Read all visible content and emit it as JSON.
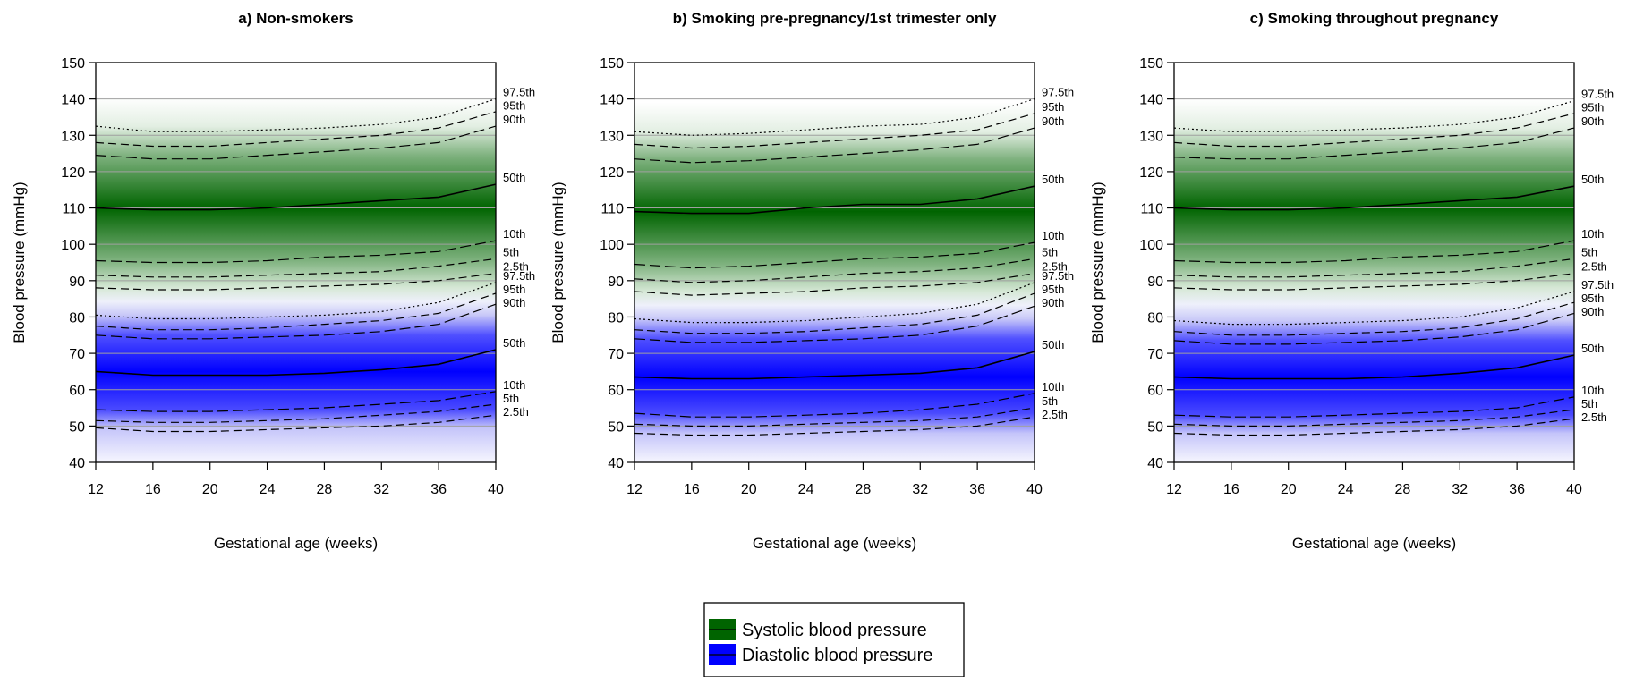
{
  "chart_data": {
    "type": "line",
    "panels": [
      {
        "title": "a) Non-smokers",
        "systolic": {
          "p2_5": [
            88,
            87.5,
            87.5,
            88,
            88.5,
            89,
            90,
            92
          ],
          "p5": [
            91.5,
            91,
            91,
            91.5,
            92,
            92.5,
            94,
            96
          ],
          "p10": [
            95.5,
            95,
            95,
            95.5,
            96.5,
            97,
            98,
            101
          ],
          "p50": [
            110,
            109.5,
            109.5,
            110,
            111,
            112,
            113,
            116.5
          ],
          "p90": [
            124.5,
            123.5,
            123.5,
            124.5,
            125.5,
            126.5,
            128,
            132.5
          ],
          "p95": [
            128,
            127,
            127,
            128,
            129,
            130,
            132,
            136.5
          ],
          "p97_5": [
            132.5,
            131,
            131,
            131.5,
            132,
            133,
            135,
            140
          ]
        },
        "diastolic": {
          "p2_5": [
            49.5,
            48.5,
            48.5,
            49,
            49.5,
            50,
            51,
            53
          ],
          "p5": [
            51.5,
            51,
            51,
            51.5,
            52,
            53,
            54,
            56
          ],
          "p10": [
            54.5,
            54,
            54,
            54.5,
            55,
            56,
            57,
            59.5
          ],
          "p50": [
            65,
            64,
            64,
            64,
            64.5,
            65.5,
            67,
            71
          ],
          "p90": [
            75,
            74,
            74,
            74.5,
            75,
            76,
            78,
            83.5
          ],
          "p95": [
            77.5,
            76.5,
            76.5,
            77,
            78,
            79,
            81,
            86.5
          ],
          "p97_5": [
            80.5,
            79.5,
            79.5,
            80,
            80.5,
            81.5,
            84,
            89.5
          ]
        }
      },
      {
        "title": "b) Smoking pre-pregnancy/1st trimester only",
        "systolic": {
          "p2_5": [
            87,
            86,
            86.5,
            87,
            88,
            88.5,
            89.5,
            92
          ],
          "p5": [
            90.5,
            89.5,
            90,
            91,
            92,
            92.5,
            93.5,
            96
          ],
          "p10": [
            94.5,
            93.5,
            94,
            95,
            96,
            96.5,
            97.5,
            100.5
          ],
          "p50": [
            109,
            108.5,
            108.5,
            110,
            111,
            111,
            112.5,
            116
          ],
          "p90": [
            123.5,
            122.5,
            123,
            124,
            125,
            126,
            127.5,
            132
          ],
          "p95": [
            127.5,
            126.5,
            127,
            128,
            129,
            130,
            131.5,
            136
          ],
          "p97_5": [
            131,
            130,
            130.5,
            131.5,
            132.5,
            133,
            135,
            140
          ]
        },
        "diastolic": {
          "p2_5": [
            48,
            47.5,
            47.5,
            48,
            48.5,
            49,
            50,
            52.5
          ],
          "p5": [
            50.5,
            50,
            50,
            50.5,
            51,
            51.5,
            52.5,
            55
          ],
          "p10": [
            53.5,
            52.5,
            52.5,
            53,
            53.5,
            54.5,
            56,
            59
          ],
          "p50": [
            63.5,
            63,
            63,
            63.5,
            64,
            64.5,
            66,
            70.5
          ],
          "p90": [
            74,
            73,
            73,
            73.5,
            74,
            75,
            77.5,
            83
          ],
          "p95": [
            76.5,
            75.5,
            75.5,
            76,
            77,
            78,
            80.5,
            86.5
          ],
          "p97_5": [
            79.5,
            78.5,
            78.5,
            79,
            80,
            81,
            83.5,
            89.5
          ]
        }
      },
      {
        "title": "c) Smoking throughout pregnancy",
        "systolic": {
          "p2_5": [
            88,
            87.5,
            87.5,
            88,
            88.5,
            89,
            90,
            92
          ],
          "p5": [
            91.5,
            91,
            91,
            91.5,
            92,
            92.5,
            94,
            96
          ],
          "p10": [
            95.5,
            95,
            95,
            95.5,
            96.5,
            97,
            98,
            101
          ],
          "p50": [
            110,
            109.5,
            109.5,
            110,
            111,
            112,
            113,
            116
          ],
          "p90": [
            124,
            123.5,
            123.5,
            124.5,
            125.5,
            126.5,
            128,
            132
          ],
          "p95": [
            128,
            127,
            127,
            128,
            129,
            130,
            132,
            136
          ],
          "p97_5": [
            132,
            131,
            131,
            131.5,
            132,
            133,
            135,
            139.5
          ]
        },
        "diastolic": {
          "p2_5": [
            48,
            47.5,
            47.5,
            48,
            48.5,
            49,
            50,
            52
          ],
          "p5": [
            50.5,
            50,
            50,
            50.5,
            51,
            51.5,
            52.5,
            54.5
          ],
          "p10": [
            53,
            52.5,
            52.5,
            53,
            53.5,
            54,
            55,
            58
          ],
          "p50": [
            63.5,
            63,
            63,
            63,
            63.5,
            64.5,
            66,
            69.5
          ],
          "p90": [
            73.5,
            72.5,
            72.5,
            73,
            73.5,
            74.5,
            76.5,
            81
          ],
          "p95": [
            76,
            75,
            75,
            75.5,
            76,
            77,
            79.5,
            84
          ],
          "p97_5": [
            79,
            78,
            78,
            78.5,
            79,
            80,
            82.5,
            87
          ]
        }
      }
    ],
    "x": [
      12,
      16,
      20,
      24,
      28,
      32,
      36,
      40
    ],
    "xlabel": "Gestational age (weeks)",
    "ylabel": "Blood pressure (mmHg)",
    "xlim": [
      12,
      40
    ],
    "ylim": [
      40,
      150
    ],
    "xticks": [
      "12",
      "16",
      "20",
      "24",
      "28",
      "32",
      "36",
      "40"
    ],
    "yticks": [
      "40",
      "50",
      "60",
      "70",
      "80",
      "90",
      "100",
      "110",
      "120",
      "130",
      "140",
      "150"
    ],
    "gridlines_y": [
      50,
      60,
      70,
      80,
      90,
      100,
      110,
      120,
      130,
      140
    ],
    "percentile_labels": {
      "p97_5": "97.5th",
      "p95": "95th",
      "p90": "90th",
      "p50": "50th",
      "p10": "10th",
      "p5": "5th",
      "p2_5": "2.5th"
    },
    "legend": {
      "position": "bottom-center",
      "items": [
        {
          "label": "Systolic blood pressure",
          "color": "#006400"
        },
        {
          "label": "Diastolic blood pressure",
          "color": "#0000ff"
        }
      ]
    },
    "colors": {
      "systolic": "#006400",
      "diastolic": "#0000ff",
      "grid": "#a0a0a0"
    }
  }
}
